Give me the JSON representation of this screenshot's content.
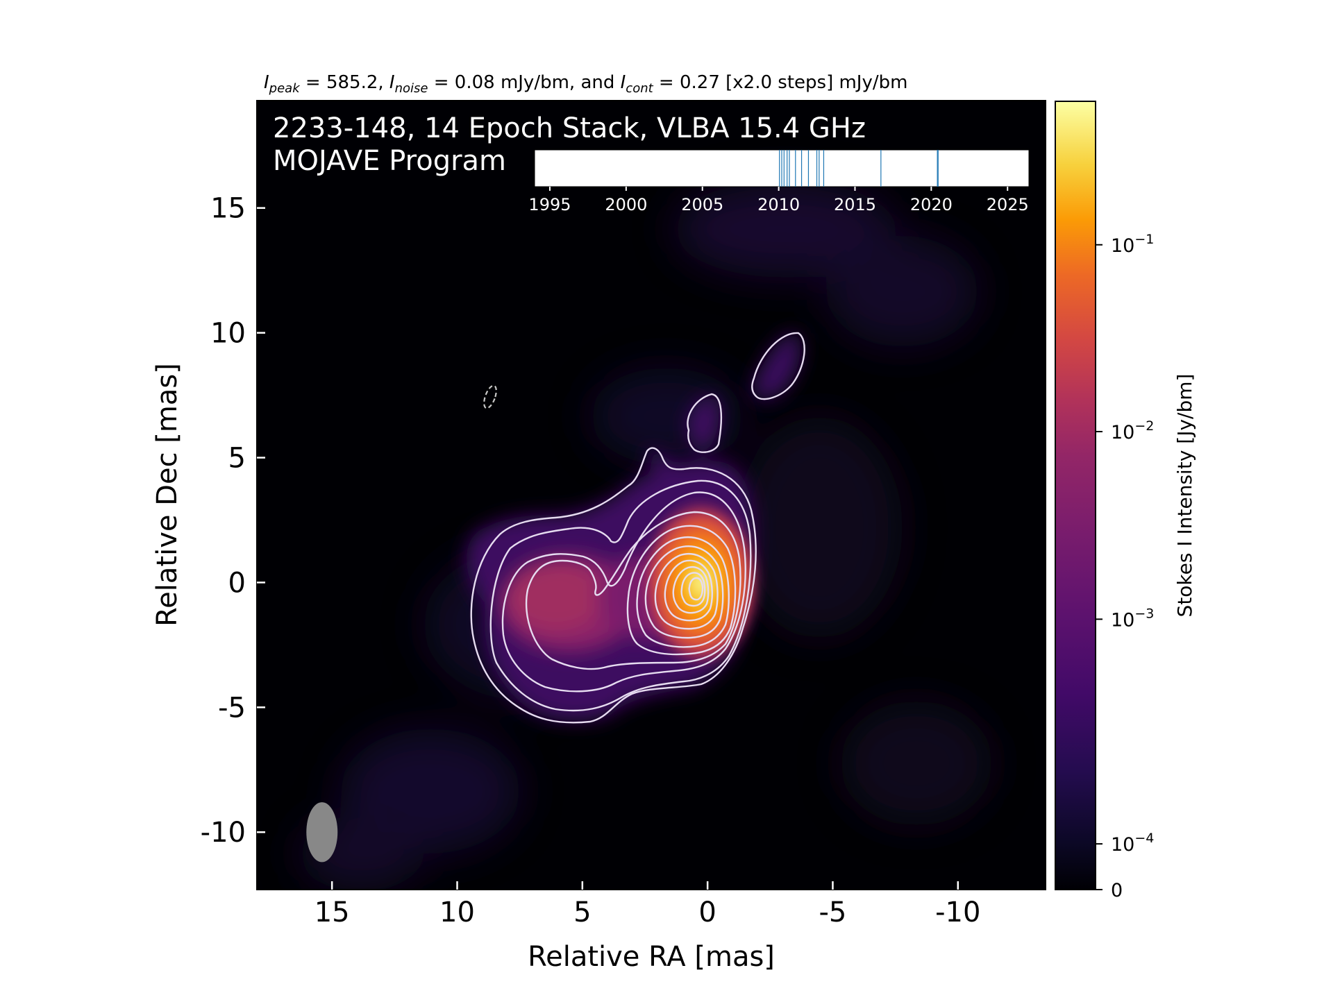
{
  "chart_data": {
    "type": "heatmap",
    "header": {
      "peak_label": "I",
      "peak_sub": "peak",
      "peak_value": " = 585.2, ",
      "noise_label": "I",
      "noise_sub": "noise",
      "noise_value": " = 0.08 mJy/bm, and ",
      "cont_label": "I",
      "cont_sub": "cont",
      "cont_value": " = 0.27 [x2.0 steps] mJy/bm"
    },
    "title_line1": "2233-148, 14 Epoch Stack, VLBA 15.4 GHz",
    "title_line2": "MOJAVE Program",
    "xlabel": "Relative RA [mas]",
    "ylabel": "Relative Dec [mas]",
    "xlim": [
      18,
      -13.5
    ],
    "ylim": [
      -12.3,
      19.3
    ],
    "x_ticks": [
      15,
      10,
      5,
      0,
      -5,
      -10
    ],
    "x_tick_labels": [
      "15",
      "10",
      "5",
      "0",
      "-5",
      "-10"
    ],
    "y_ticks": [
      15,
      10,
      5,
      0,
      -5,
      -10
    ],
    "y_tick_labels": [
      "15",
      "10",
      "5",
      "0",
      "-5",
      "-10"
    ],
    "colorbar": {
      "label": "Stokes I Intensity [Jy/bm]",
      "colormap": "inferno",
      "ticks": [
        {
          "label": "0",
          "exp": "",
          "frac": 0.0
        },
        {
          "label": "10",
          "exp": "−4",
          "frac": 0.058
        },
        {
          "label": "10",
          "exp": "−3",
          "frac": 0.343
        },
        {
          "label": "10",
          "exp": "−2",
          "frac": 0.581
        },
        {
          "label": "10",
          "exp": "−1",
          "frac": 0.818
        }
      ]
    },
    "beam": {
      "ra": 15.4,
      "dec": -10.0,
      "major_mas": 2.4,
      "minor_mas": 1.25
    },
    "timeline": {
      "xlim": [
        1994,
        2026.4
      ],
      "ticks": [
        1995,
        2000,
        2005,
        2010,
        2015,
        2020,
        2025
      ],
      "tick_labels": [
        "1995",
        "2000",
        "2005",
        "2010",
        "2015",
        "2020",
        "2025"
      ],
      "epochs": [
        2010.05,
        2010.2,
        2010.35,
        2010.55,
        2010.7,
        2011.1,
        2011.5,
        2011.95,
        2012.5,
        2012.65,
        2012.95,
        2016.7,
        2020.4,
        2020.45
      ]
    },
    "contour_color": "#e6dcf0",
    "line_color": "#1f77b4"
  }
}
